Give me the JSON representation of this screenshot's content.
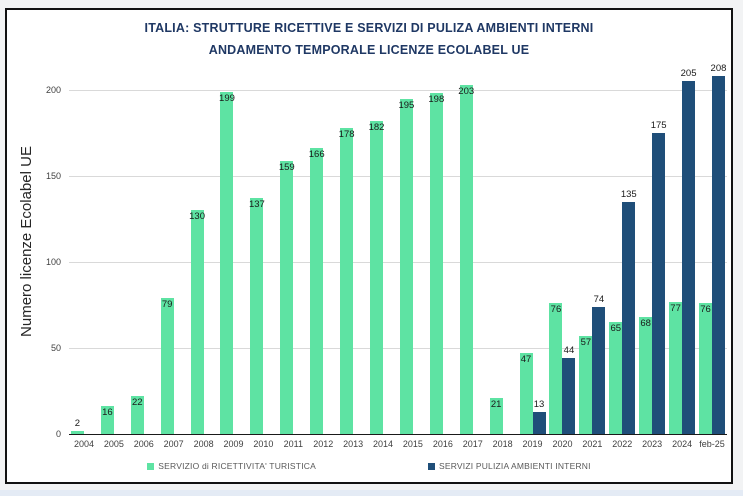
{
  "chart_data": {
    "type": "bar",
    "title_line1": "ITALIA:  STRUTTURE RICETTIVE E SERVIZI DI PULIZA AMBIENTI INTERNI",
    "title_line2": "ANDAMENTO TEMPORALE LICENZE ECOLABEL UE",
    "ylabel": "Numero licenze Ecolabel UE",
    "categories": [
      "2004",
      "2005",
      "2006",
      "2007",
      "2008",
      "2009",
      "2010",
      "2011",
      "2012",
      "2013",
      "2014",
      "2015",
      "2016",
      "2017",
      "2018",
      "2019",
      "2020",
      "2021",
      "2022",
      "2023",
      "2024",
      "feb-25"
    ],
    "series": [
      {
        "name": "SERVIZIO di RICETTIVITA' TURISTICA",
        "color": "#5ee3a3",
        "label_position": "inside-end",
        "values": [
          2,
          16,
          22,
          79,
          130,
          199,
          137,
          159,
          166,
          178,
          182,
          195,
          198,
          203,
          21,
          47,
          76,
          57,
          65,
          68,
          77,
          76
        ]
      },
      {
        "name": "SERVIZI PULIZIA AMBIENTI INTERNI",
        "color": "#1f4e79",
        "label_position": "outside-end",
        "values": [
          null,
          null,
          null,
          null,
          null,
          null,
          null,
          null,
          null,
          null,
          null,
          null,
          null,
          null,
          null,
          13,
          44,
          74,
          135,
          175,
          205,
          208
        ]
      }
    ],
    "yticks": [
      0,
      50,
      100,
      150,
      200
    ],
    "ylim": [
      0,
      200
    ],
    "grid": true,
    "legend_position": "bottom"
  }
}
